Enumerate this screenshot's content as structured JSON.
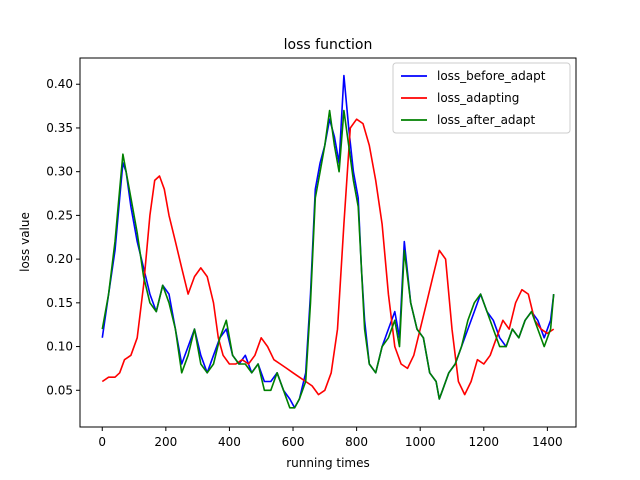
{
  "chart_data": {
    "type": "line",
    "title": "loss function",
    "xlabel": "running times",
    "ylabel": "loss value",
    "xlim": [
      -70,
      1490
    ],
    "ylim": [
      0.008,
      0.43
    ],
    "xticks": [
      0,
      200,
      400,
      600,
      800,
      1000,
      1200,
      1400
    ],
    "xtick_labels": [
      "0",
      "200",
      "400",
      "600",
      "800",
      "1000",
      "1200",
      "1400"
    ],
    "yticks": [
      0.05,
      0.1,
      0.15,
      0.2,
      0.25,
      0.3,
      0.35,
      0.4
    ],
    "ytick_labels": [
      "0.05",
      "0.10",
      "0.15",
      "0.20",
      "0.25",
      "0.30",
      "0.35",
      "0.40"
    ],
    "grid": false,
    "legend_position": "top-right",
    "series": [
      {
        "name": "loss_before_adapt",
        "color": "#0000ff",
        "x": [
          0,
          20,
          40,
          55,
          65,
          75,
          90,
          110,
          130,
          150,
          170,
          190,
          210,
          230,
          250,
          270,
          290,
          310,
          330,
          350,
          370,
          390,
          410,
          430,
          450,
          470,
          490,
          510,
          530,
          550,
          570,
          590,
          605,
          620,
          640,
          655,
          670,
          685,
          700,
          715,
          730,
          745,
          760,
          775,
          790,
          805,
          815,
          825,
          840,
          860,
          880,
          900,
          920,
          935,
          950,
          970,
          990,
          1010,
          1030,
          1050,
          1060,
          1070,
          1090,
          1110,
          1130,
          1150,
          1170,
          1190,
          1210,
          1230,
          1250,
          1270,
          1290,
          1310,
          1330,
          1350,
          1370,
          1390,
          1410,
          1420
        ],
        "y": [
          0.11,
          0.16,
          0.21,
          0.27,
          0.31,
          0.3,
          0.26,
          0.22,
          0.19,
          0.16,
          0.14,
          0.17,
          0.16,
          0.12,
          0.08,
          0.1,
          0.12,
          0.09,
          0.07,
          0.09,
          0.11,
          0.12,
          0.09,
          0.08,
          0.09,
          0.07,
          0.08,
          0.06,
          0.06,
          0.07,
          0.05,
          0.04,
          0.03,
          0.04,
          0.07,
          0.16,
          0.28,
          0.31,
          0.33,
          0.36,
          0.34,
          0.31,
          0.41,
          0.35,
          0.3,
          0.27,
          0.19,
          0.13,
          0.08,
          0.07,
          0.1,
          0.12,
          0.14,
          0.11,
          0.22,
          0.15,
          0.12,
          0.11,
          0.07,
          0.06,
          0.04,
          0.05,
          0.07,
          0.08,
          0.1,
          0.12,
          0.14,
          0.16,
          0.14,
          0.13,
          0.11,
          0.1,
          0.12,
          0.11,
          0.13,
          0.14,
          0.13,
          0.11,
          0.13,
          0.16
        ]
      },
      {
        "name": "loss_adapting",
        "color": "#ff0000",
        "x": [
          0,
          20,
          40,
          55,
          70,
          90,
          110,
          130,
          150,
          165,
          180,
          195,
          210,
          230,
          250,
          270,
          290,
          310,
          330,
          350,
          365,
          380,
          400,
          420,
          440,
          460,
          480,
          500,
          520,
          540,
          560,
          580,
          600,
          620,
          640,
          660,
          680,
          700,
          720,
          740,
          760,
          780,
          800,
          820,
          840,
          860,
          880,
          900,
          920,
          940,
          960,
          980,
          1000,
          1020,
          1040,
          1060,
          1080,
          1100,
          1120,
          1140,
          1160,
          1180,
          1200,
          1220,
          1240,
          1260,
          1280,
          1300,
          1320,
          1340,
          1360,
          1380,
          1400,
          1420
        ],
        "y": [
          0.06,
          0.065,
          0.065,
          0.07,
          0.085,
          0.09,
          0.11,
          0.17,
          0.25,
          0.29,
          0.295,
          0.28,
          0.25,
          0.22,
          0.19,
          0.16,
          0.18,
          0.19,
          0.18,
          0.15,
          0.11,
          0.09,
          0.08,
          0.08,
          0.085,
          0.08,
          0.09,
          0.11,
          0.1,
          0.085,
          0.08,
          0.075,
          0.07,
          0.065,
          0.06,
          0.055,
          0.045,
          0.05,
          0.07,
          0.12,
          0.24,
          0.35,
          0.36,
          0.355,
          0.33,
          0.29,
          0.24,
          0.16,
          0.1,
          0.08,
          0.075,
          0.09,
          0.12,
          0.15,
          0.18,
          0.21,
          0.2,
          0.12,
          0.06,
          0.045,
          0.06,
          0.085,
          0.08,
          0.09,
          0.11,
          0.13,
          0.12,
          0.15,
          0.165,
          0.16,
          0.13,
          0.12,
          0.115,
          0.12
        ]
      },
      {
        "name": "loss_after_adapt",
        "color": "#008000",
        "x": [
          0,
          20,
          40,
          55,
          65,
          75,
          90,
          110,
          130,
          150,
          170,
          190,
          210,
          230,
          250,
          270,
          290,
          310,
          330,
          350,
          370,
          390,
          410,
          430,
          450,
          470,
          490,
          510,
          530,
          550,
          570,
          590,
          605,
          620,
          640,
          655,
          670,
          685,
          700,
          715,
          730,
          745,
          760,
          775,
          790,
          805,
          815,
          825,
          840,
          860,
          880,
          900,
          920,
          935,
          950,
          970,
          990,
          1010,
          1030,
          1050,
          1060,
          1070,
          1090,
          1110,
          1130,
          1150,
          1170,
          1190,
          1210,
          1230,
          1250,
          1270,
          1290,
          1310,
          1330,
          1350,
          1370,
          1390,
          1410,
          1420
        ],
        "y": [
          0.12,
          0.16,
          0.22,
          0.28,
          0.32,
          0.3,
          0.27,
          0.23,
          0.18,
          0.15,
          0.14,
          0.17,
          0.15,
          0.12,
          0.07,
          0.09,
          0.12,
          0.08,
          0.07,
          0.08,
          0.11,
          0.13,
          0.09,
          0.08,
          0.08,
          0.07,
          0.08,
          0.05,
          0.05,
          0.07,
          0.05,
          0.03,
          0.03,
          0.04,
          0.06,
          0.15,
          0.27,
          0.3,
          0.33,
          0.37,
          0.33,
          0.3,
          0.37,
          0.33,
          0.29,
          0.26,
          0.19,
          0.12,
          0.08,
          0.07,
          0.1,
          0.11,
          0.13,
          0.1,
          0.21,
          0.15,
          0.12,
          0.11,
          0.07,
          0.06,
          0.04,
          0.05,
          0.07,
          0.08,
          0.1,
          0.13,
          0.15,
          0.16,
          0.14,
          0.12,
          0.1,
          0.1,
          0.12,
          0.11,
          0.13,
          0.14,
          0.12,
          0.1,
          0.12,
          0.16
        ]
      }
    ]
  }
}
